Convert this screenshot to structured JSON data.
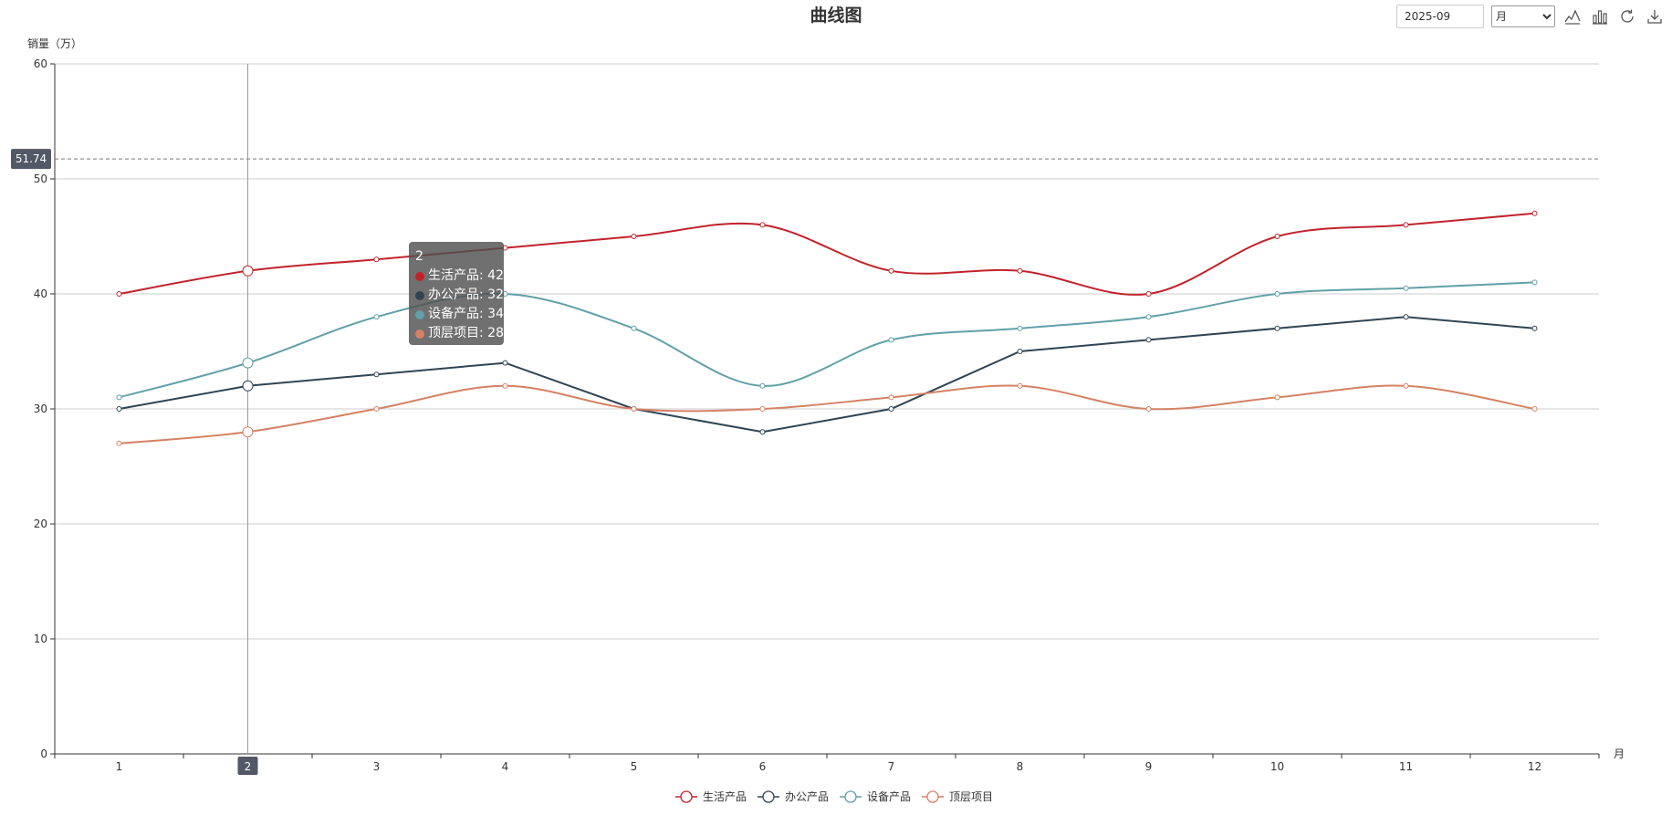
{
  "chart_data": {
    "type": "line",
    "title": "曲线图",
    "ylabel": "销量（万）",
    "xlabel": "月",
    "categories": [
      "1",
      "2",
      "3",
      "4",
      "5",
      "6",
      "7",
      "8",
      "9",
      "10",
      "11",
      "12"
    ],
    "ylim": [
      0,
      60
    ],
    "yticks": [
      "0",
      "10",
      "20",
      "30",
      "40",
      "50",
      "60"
    ],
    "grid": true,
    "smooth": true,
    "legend_position": "bottom-center",
    "series": [
      {
        "name": "生活产品",
        "color": "#c1232b",
        "smooth": true,
        "values": [
          40,
          42,
          43,
          44,
          45,
          46,
          42,
          42,
          40,
          45,
          46,
          47
        ]
      },
      {
        "name": "办公产品",
        "color": "#2f4554",
        "smooth": false,
        "values": [
          30,
          32,
          33,
          34,
          30,
          28,
          30,
          35,
          36,
          37,
          38,
          37
        ]
      },
      {
        "name": "设备产品",
        "color": "#61a0a8",
        "smooth": true,
        "values": [
          31,
          34,
          38,
          40,
          37,
          32,
          36,
          37,
          38,
          40,
          40.5,
          41
        ]
      },
      {
        "name": "顶层项目",
        "color": "#d48265",
        "smooth": true,
        "values": [
          27,
          28,
          30,
          32,
          30,
          30,
          31,
          32,
          30,
          31,
          32,
          30
        ]
      }
    ],
    "pointer": {
      "x_label": "2",
      "y_value": "51.74"
    }
  },
  "toolbar": {
    "date_value": "2025-09",
    "period_selected": "月",
    "period_options": [
      "月"
    ],
    "icons": [
      "line-chart-icon",
      "bar-chart-icon",
      "refresh-icon",
      "download-icon"
    ]
  },
  "tooltip": {
    "title": "2",
    "rows": [
      {
        "color": "#c1232b",
        "text": "生活产品: 42"
      },
      {
        "color": "#2f4554",
        "text": "办公产品: 32"
      },
      {
        "color": "#61a0a8",
        "text": "设备产品: 34"
      },
      {
        "color": "#d48265",
        "text": "顶层项目: 28"
      }
    ]
  }
}
